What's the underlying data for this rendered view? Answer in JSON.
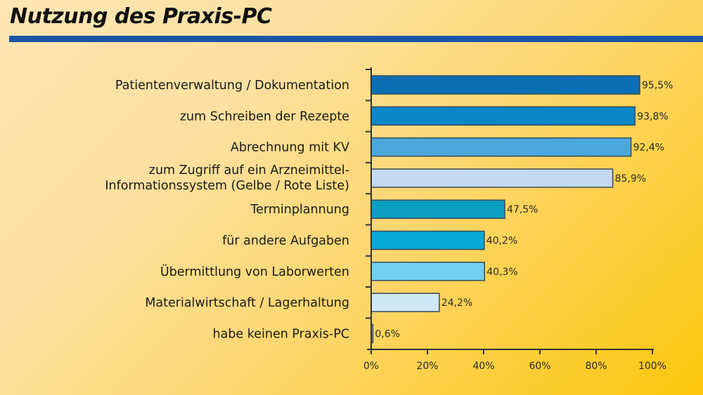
{
  "title": "Nutzung des Praxis-PC",
  "colors": {
    "title_rule": "#1a55a8",
    "bar_outline": "#3a4a5a",
    "axis": "#333333"
  },
  "chart_data": {
    "type": "bar",
    "orientation": "horizontal",
    "title": "Nutzung des Praxis-PC",
    "xlabel": "",
    "ylabel": "",
    "xlim": [
      0,
      100
    ],
    "grid": false,
    "categories": [
      [
        "Patientenverwaltung / Dokumentation"
      ],
      [
        "zum Schreiben der Rezepte"
      ],
      [
        "Abrechnung mit KV"
      ],
      [
        "zum Zugriff auf ein Arzneimittel-",
        "Informationssystem (Gelbe / Rote Liste)"
      ],
      [
        "Terminplannung"
      ],
      [
        "für andere Aufgaben"
      ],
      [
        "Übermittlung von Laborwerten"
      ],
      [
        "Materialwirtschaft / Lagerhaltung"
      ],
      [
        "habe keinen Praxis-PC"
      ]
    ],
    "values": [
      95.5,
      93.8,
      92.4,
      85.9,
      47.5,
      40.2,
      40.3,
      24.2,
      0.6
    ],
    "value_labels": [
      "95,5%",
      "93,8%",
      "92,4%",
      "85,9%",
      "47,5%",
      "40,2%",
      "40,3%",
      "24,2%",
      "0,6%"
    ],
    "bar_colors": [
      "#0a6fb5",
      "#0b86c8",
      "#4ba7dc",
      "#c4d9ef",
      "#0a9fc2",
      "#07aad6",
      "#6fd0ef",
      "#cfe8f6",
      "#9ab0c4"
    ],
    "x_ticks": [
      0,
      20,
      40,
      60,
      80,
      100
    ],
    "x_tick_labels": [
      "0%",
      "20%",
      "40%",
      "60%",
      "80%",
      "100%"
    ]
  }
}
